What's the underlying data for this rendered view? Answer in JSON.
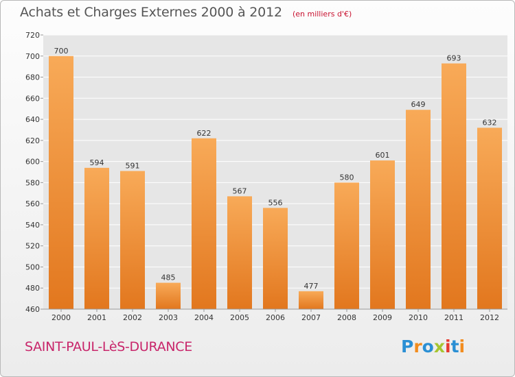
{
  "title": "Achats et Charges Externes 2000 à 2012",
  "subtitle": "(en milliers d'€)",
  "location": "SAINT-PAUL-LèS-DURANCE",
  "logo": {
    "text": "Proxiti",
    "letters": [
      {
        "ch": "P",
        "color": "#2a8fd4"
      },
      {
        "ch": "r",
        "color": "#f28c1e"
      },
      {
        "ch": "o",
        "color": "#2a8fd4"
      },
      {
        "ch": "x",
        "color": "#a6c530"
      },
      {
        "ch": "i",
        "color": "#e63a2e"
      },
      {
        "ch": "t",
        "color": "#2a8fd4"
      },
      {
        "ch": "i",
        "color": "#f28c1e"
      }
    ]
  },
  "colors": {
    "bar_top": "#f8aa58",
    "bar_bottom": "#e2771e",
    "grid": "#ffffff",
    "plot_bg": "#e6e6e6",
    "axis_text": "#333333"
  },
  "chart_data": {
    "type": "bar",
    "categories": [
      "2000",
      "2001",
      "2002",
      "2003",
      "2004",
      "2005",
      "2006",
      "2007",
      "2008",
      "2009",
      "2010",
      "2011",
      "2012"
    ],
    "values": [
      700,
      594,
      591,
      485,
      622,
      567,
      556,
      477,
      580,
      601,
      649,
      693,
      632
    ],
    "ylim": [
      460,
      720
    ],
    "yticks": [
      460,
      480,
      500,
      520,
      540,
      560,
      580,
      600,
      620,
      640,
      660,
      680,
      700,
      720
    ],
    "grid": true,
    "data_labels": true
  }
}
